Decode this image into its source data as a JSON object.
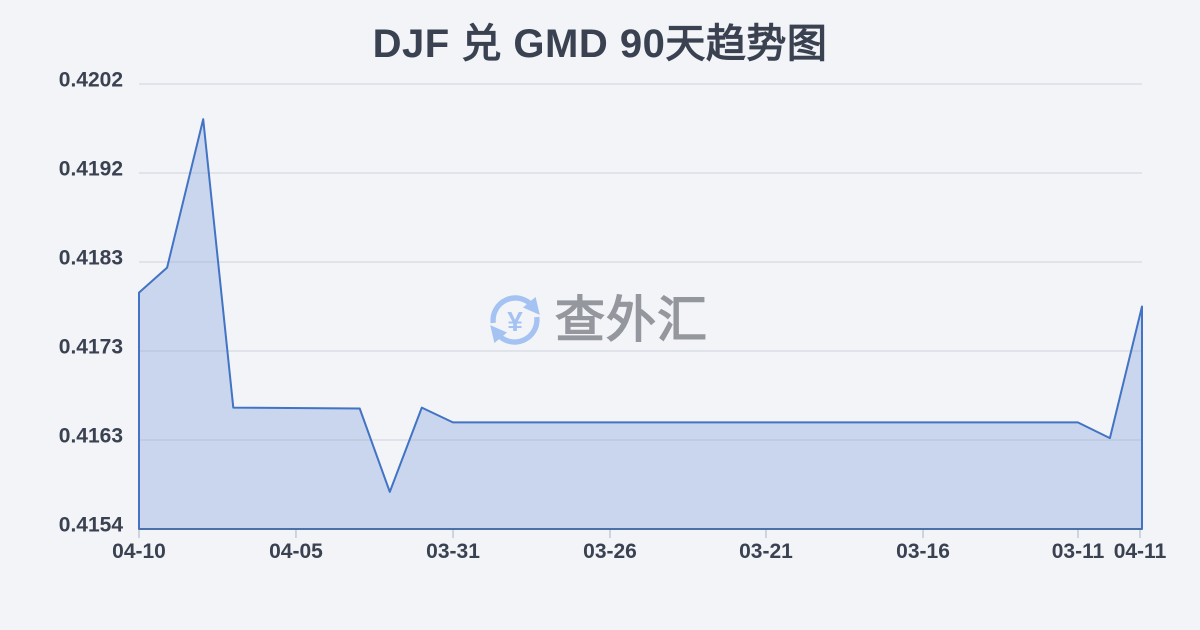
{
  "page": {
    "background_color": "#f2f4f7"
  },
  "header": {
    "title": "DJF 兑 GMD 90天趋势图",
    "title_color": "#3a4150"
  },
  "watermark": {
    "brand_text": "查外汇",
    "icon": "currency-refresh-icon",
    "currency_symbol": "¥",
    "icon_color": "#a4c2f2",
    "text_color": "#95979e"
  },
  "chart_data": {
    "type": "area",
    "title": "DJF 兑 GMD 90天趋势图",
    "legend": "none",
    "grid": "horizontal",
    "ylim": [
      0.4154,
      0.4202
    ],
    "y_tick_labels": [
      "0.4202",
      "0.4192",
      "0.4183",
      "0.4173",
      "0.4163",
      "0.4154"
    ],
    "x_ticks": [
      {
        "label": "04-10",
        "pos": 0.0
      },
      {
        "label": "04-05",
        "pos": 0.1565
      },
      {
        "label": "03-31",
        "pos": 0.3131
      },
      {
        "label": "03-26",
        "pos": 0.4696
      },
      {
        "label": "03-21",
        "pos": 0.6251
      },
      {
        "label": "03-16",
        "pos": 0.7817
      },
      {
        "label": "03-11",
        "pos": 0.9362
      },
      {
        "label": "04-11",
        "pos": 0.998
      }
    ],
    "points": [
      {
        "x": 0.0,
        "value": 0.41795
      },
      {
        "x": 0.028,
        "value": 0.41822
      },
      {
        "x": 0.064,
        "value": 0.41982
      },
      {
        "x": 0.094,
        "value": 0.41671
      },
      {
        "x": 0.22,
        "value": 0.4167
      },
      {
        "x": 0.25,
        "value": 0.4158
      },
      {
        "x": 0.282,
        "value": 0.41671
      },
      {
        "x": 0.313,
        "value": 0.41655
      },
      {
        "x": 0.936,
        "value": 0.41655
      },
      {
        "x": 0.968,
        "value": 0.41638
      },
      {
        "x": 1.0,
        "value": 0.4178
      }
    ],
    "colors": {
      "line": "#4273c4",
      "fill": "rgba(100,138,212,0.28)",
      "axis_line": "#4a72a8",
      "gridline": "rgba(150,160,178,0.30)",
      "tick_mark": "#c2c9d4",
      "tick_label": "#3a4150"
    }
  }
}
